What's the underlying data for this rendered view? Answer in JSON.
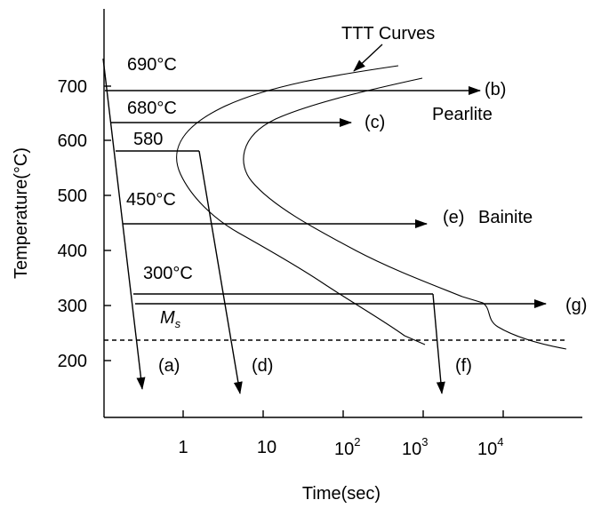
{
  "title": "TTT Curves",
  "axes": {
    "x_label": "Time(sec)",
    "y_label": "Temperature(°C)",
    "x_ticks": [
      {
        "base": "1",
        "exp": ""
      },
      {
        "base": "10",
        "exp": ""
      },
      {
        "base": "10",
        "exp": "2"
      },
      {
        "base": "10",
        "exp": "3"
      },
      {
        "base": "10",
        "exp": "4"
      }
    ],
    "y_ticks": [
      "700",
      "600",
      "500",
      "400",
      "300",
      "200"
    ]
  },
  "temperatures": {
    "t690": "690°C",
    "t680": "680°C",
    "t580": "580",
    "t450": "450°C",
    "t300": "300°C"
  },
  "paths": {
    "a": "(a)",
    "b": "(b)",
    "c": "(c)",
    "d": "(d)",
    "e": "(e)",
    "f": "(f)",
    "g": "(g)"
  },
  "regions": {
    "pearlite": "Pearlite",
    "bainite": "Bainite"
  },
  "ms": {
    "base": "M",
    "sub": "s"
  }
}
